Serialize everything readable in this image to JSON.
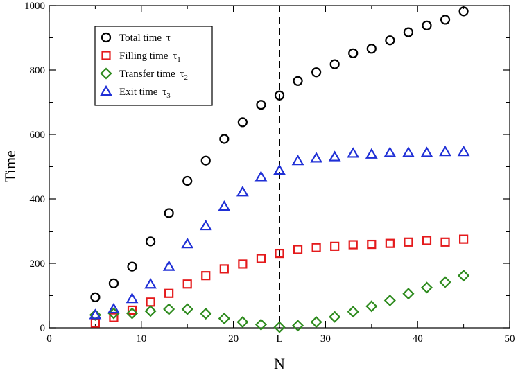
{
  "chart_data": {
    "type": "scatter",
    "xlabel": "N",
    "ylabel": "Time",
    "xlim": [
      0,
      50
    ],
    "ylim": [
      0,
      1000
    ],
    "xticks": [
      "0",
      "10",
      "20",
      "L",
      "30",
      "40",
      "50"
    ],
    "xtick_values": [
      0,
      10,
      20,
      25,
      30,
      40,
      50
    ],
    "yticks": [
      "0",
      "200",
      "400",
      "600",
      "800",
      "1000"
    ],
    "ytick_values": [
      0,
      200,
      400,
      600,
      800,
      1000
    ],
    "vline": {
      "x": 25,
      "style": "dashed",
      "color": "#000000"
    },
    "legend_position": "top-left",
    "series": [
      {
        "name": "Total time",
        "symbol_text": "τ",
        "subscript": "",
        "marker": "circle",
        "color": "#000000",
        "x": [
          5,
          7,
          9,
          11,
          13,
          15,
          17,
          19,
          21,
          23,
          25,
          27,
          29,
          31,
          33,
          35,
          37,
          39,
          41,
          43,
          45
        ],
        "y": [
          95,
          138,
          190,
          268,
          356,
          456,
          519,
          586,
          638,
          692,
          721,
          766,
          793,
          818,
          852,
          866,
          892,
          917,
          938,
          956,
          982
        ]
      },
      {
        "name": "Filling time",
        "symbol_text": "τ",
        "subscript": "1",
        "marker": "square",
        "color": "#e41a1c",
        "x": [
          5,
          7,
          9,
          11,
          13,
          15,
          17,
          19,
          21,
          23,
          25,
          27,
          29,
          31,
          33,
          35,
          37,
          39,
          41,
          43,
          45
        ],
        "y": [
          15,
          32,
          55,
          80,
          107,
          136,
          162,
          183,
          198,
          215,
          231,
          243,
          249,
          253,
          258,
          259,
          262,
          266,
          271,
          266,
          275
        ]
      },
      {
        "name": "Transfer time",
        "symbol_text": "τ",
        "subscript": "2",
        "marker": "diamond",
        "color": "#2e8b1e",
        "x": [
          5,
          7,
          9,
          11,
          13,
          15,
          17,
          19,
          21,
          23,
          25,
          27,
          29,
          31,
          33,
          35,
          37,
          39,
          41,
          43,
          45
        ],
        "y": [
          40,
          45,
          45,
          52,
          58,
          58,
          44,
          29,
          18,
          10,
          2,
          7,
          18,
          34,
          50,
          67,
          85,
          106,
          125,
          142,
          162
        ]
      },
      {
        "name": "Exit time",
        "symbol_text": "τ",
        "subscript": "3",
        "marker": "triangle",
        "color": "#1f2fd6",
        "x": [
          5,
          7,
          9,
          11,
          13,
          15,
          17,
          19,
          21,
          23,
          25,
          27,
          29,
          31,
          33,
          35,
          37,
          39,
          41,
          43,
          45
        ],
        "y": [
          40,
          58,
          90,
          135,
          190,
          260,
          316,
          376,
          421,
          468,
          488,
          518,
          526,
          530,
          541,
          538,
          543,
          543,
          543,
          546,
          546
        ]
      }
    ]
  }
}
